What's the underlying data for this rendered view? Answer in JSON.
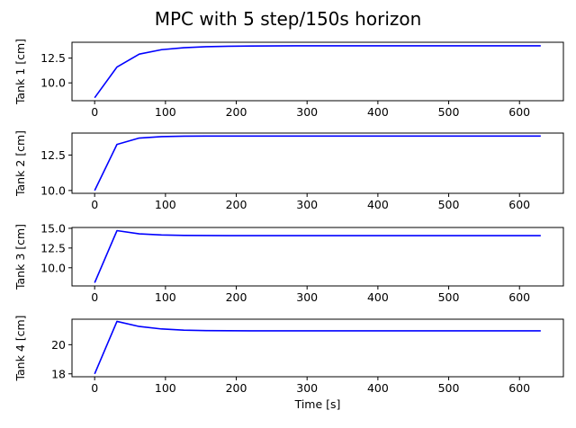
{
  "figure_title": "MPC with 5 step/150s horizon",
  "chart_data": [
    {
      "type": "line",
      "ylabel": "Tank 1 [cm]",
      "xlabel": "",
      "xlim": [
        -32,
        662
      ],
      "ylim": [
        8.2,
        14.1
      ],
      "xticks": [
        0,
        100,
        200,
        300,
        400,
        500,
        600
      ],
      "xtick_labels": [
        "0",
        "100",
        "200",
        "300",
        "400",
        "500",
        "600"
      ],
      "yticks": [
        10.0,
        12.5
      ],
      "ytick_labels": [
        "10.0",
        "12.5"
      ],
      "color": "#0000ff",
      "x": [
        0,
        31.5,
        63,
        94.5,
        126,
        157.5,
        189,
        220.5,
        252,
        283.5,
        315,
        346.5,
        378,
        409.5,
        441,
        472.5,
        504,
        535.5,
        567,
        598.5,
        630
      ],
      "y": [
        8.5,
        11.6,
        12.9,
        13.35,
        13.55,
        13.65,
        13.7,
        13.72,
        13.73,
        13.74,
        13.74,
        13.74,
        13.74,
        13.74,
        13.74,
        13.74,
        13.74,
        13.74,
        13.74,
        13.74,
        13.74
      ]
    },
    {
      "type": "line",
      "ylabel": "Tank 2 [cm]",
      "xlabel": "",
      "xlim": [
        -32,
        662
      ],
      "ylim": [
        9.8,
        14.05
      ],
      "xticks": [
        0,
        100,
        200,
        300,
        400,
        500,
        600
      ],
      "xtick_labels": [
        "0",
        "100",
        "200",
        "300",
        "400",
        "500",
        "600"
      ],
      "yticks": [
        10.0,
        12.5
      ],
      "ytick_labels": [
        "10.0",
        "12.5"
      ],
      "color": "#0000ff",
      "x": [
        0,
        31.5,
        63,
        94.5,
        126,
        157.5,
        189,
        220.5,
        252,
        283.5,
        315,
        346.5,
        378,
        409.5,
        441,
        472.5,
        504,
        535.5,
        567,
        598.5,
        630
      ],
      "y": [
        10.0,
        13.25,
        13.7,
        13.8,
        13.83,
        13.84,
        13.84,
        13.84,
        13.84,
        13.84,
        13.84,
        13.84,
        13.84,
        13.84,
        13.84,
        13.84,
        13.84,
        13.84,
        13.84,
        13.84,
        13.84
      ]
    },
    {
      "type": "line",
      "ylabel": "Tank 3 [cm]",
      "xlabel": "",
      "xlim": [
        -32,
        662
      ],
      "ylim": [
        7.7,
        15.1
      ],
      "xticks": [
        0,
        100,
        200,
        300,
        400,
        500,
        600
      ],
      "xtick_labels": [
        "0",
        "100",
        "200",
        "300",
        "400",
        "500",
        "600"
      ],
      "yticks": [
        10.0,
        12.5,
        15.0
      ],
      "ytick_labels": [
        "10.0",
        "12.5",
        "15.0"
      ],
      "color": "#0000ff",
      "x": [
        0,
        31.5,
        63,
        94.5,
        126,
        157.5,
        189,
        220.5,
        252,
        283.5,
        315,
        346.5,
        378,
        409.5,
        441,
        472.5,
        504,
        535.5,
        567,
        598.5,
        630
      ],
      "y": [
        8.1,
        14.7,
        14.3,
        14.15,
        14.1,
        14.08,
        14.07,
        14.07,
        14.07,
        14.07,
        14.07,
        14.07,
        14.07,
        14.07,
        14.07,
        14.07,
        14.07,
        14.07,
        14.07,
        14.07,
        14.07
      ]
    },
    {
      "type": "line",
      "ylabel": "Tank 4 [cm]",
      "xlabel": "Time [s]",
      "xlim": [
        -32,
        662
      ],
      "ylim": [
        17.8,
        21.75
      ],
      "xticks": [
        0,
        100,
        200,
        300,
        400,
        500,
        600
      ],
      "xtick_labels": [
        "0",
        "100",
        "200",
        "300",
        "400",
        "500",
        "600"
      ],
      "yticks": [
        18,
        20
      ],
      "ytick_labels": [
        "18",
        "20"
      ],
      "color": "#0000ff",
      "x": [
        0,
        31.5,
        63,
        94.5,
        126,
        157.5,
        189,
        220.5,
        252,
        283.5,
        315,
        346.5,
        378,
        409.5,
        441,
        472.5,
        504,
        535.5,
        567,
        598.5,
        630
      ],
      "y": [
        18.0,
        21.6,
        21.25,
        21.08,
        21.0,
        20.97,
        20.96,
        20.95,
        20.95,
        20.95,
        20.95,
        20.95,
        20.95,
        20.95,
        20.95,
        20.95,
        20.95,
        20.95,
        20.95,
        20.95,
        20.95
      ]
    }
  ]
}
